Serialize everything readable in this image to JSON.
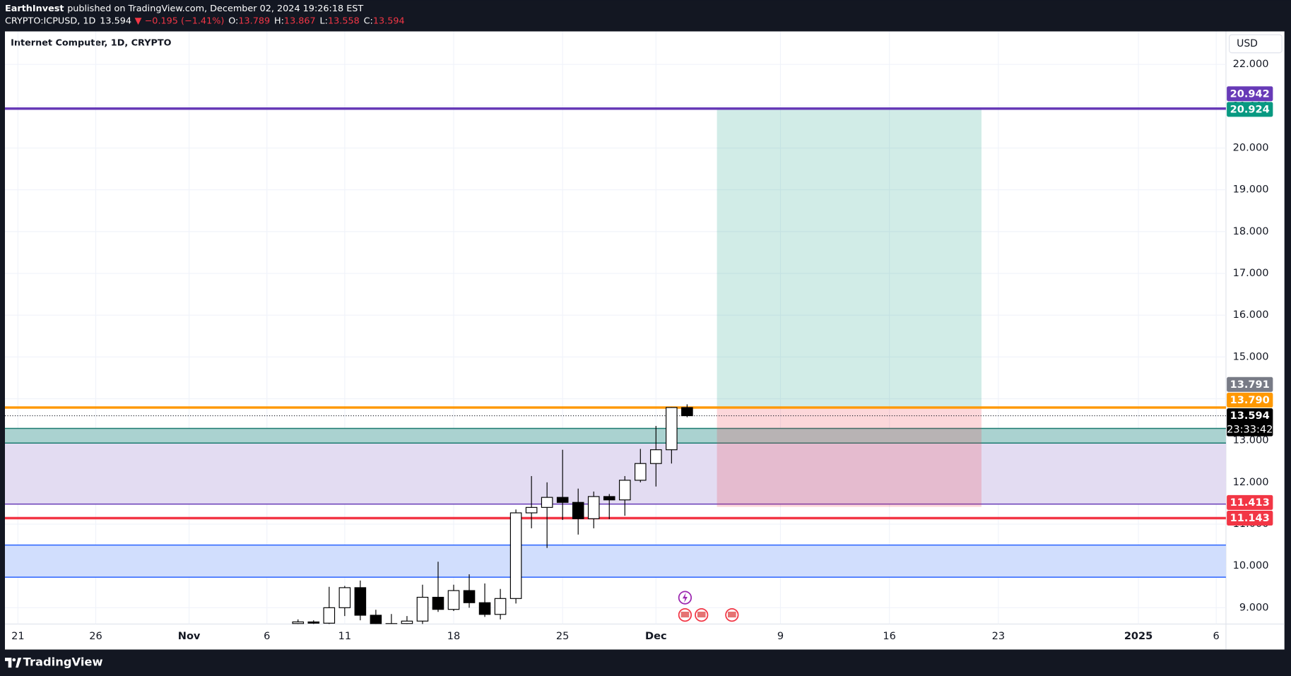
{
  "header": {
    "author": "EarthInvest",
    "published": "published on TradingView.com, December 02, 2024 19:26:18 EST",
    "symbol": "CRYPTO:ICPUSD, 1D",
    "last": "13.594",
    "change": "▼ −0.195 (−1.41%)",
    "ohlc": [
      {
        "key": "O:",
        "value": "13.789"
      },
      {
        "key": "H:",
        "value": "13.867"
      },
      {
        "key": "L:",
        "value": "13.558"
      },
      {
        "key": "C:",
        "value": "13.594"
      }
    ],
    "down_color": "#f23645"
  },
  "footer": {
    "brand": "TradingView"
  },
  "chart_data": {
    "type": "candlestick",
    "title": "Internet Computer, 1D, CRYPTO",
    "currency": "USD",
    "x": [
      "2024-11-08",
      "2024-11-09",
      "2024-11-10",
      "2024-11-11",
      "2024-11-12",
      "2024-11-13",
      "2024-11-14",
      "2024-11-15",
      "2024-11-16",
      "2024-11-17",
      "2024-11-18",
      "2024-11-19",
      "2024-11-20",
      "2024-11-21",
      "2024-11-22",
      "2024-11-23",
      "2024-11-24",
      "2024-11-25",
      "2024-11-26",
      "2024-11-27",
      "2024-11-28",
      "2024-11-29",
      "2024-11-30",
      "2024-12-01",
      "2024-12-02",
      "2024-12-03"
    ],
    "open": [
      8.62,
      8.66,
      8.63,
      9.0,
      9.48,
      8.82,
      8.6,
      8.62,
      8.68,
      9.25,
      8.96,
      9.41,
      9.12,
      8.84,
      9.22,
      11.27,
      11.4,
      11.64,
      11.52,
      11.13,
      11.66,
      11.58,
      12.05,
      12.45,
      12.78,
      13.789
    ],
    "high": [
      8.72,
      8.7,
      9.5,
      9.52,
      9.65,
      8.95,
      8.85,
      8.8,
      9.55,
      10.1,
      9.55,
      9.8,
      9.58,
      9.45,
      11.35,
      12.15,
      12.0,
      12.78,
      11.85,
      11.78,
      11.72,
      12.15,
      12.8,
      13.35,
      13.8,
      13.867
    ],
    "low": [
      8.55,
      8.55,
      8.55,
      8.8,
      8.7,
      8.5,
      8.45,
      8.5,
      8.6,
      8.9,
      8.92,
      9.0,
      8.78,
      8.72,
      9.1,
      10.9,
      10.43,
      11.1,
      10.75,
      10.9,
      11.12,
      11.2,
      12.0,
      11.9,
      12.45,
      13.558
    ],
    "close": [
      8.66,
      8.63,
      9.0,
      9.48,
      8.82,
      8.6,
      8.62,
      8.68,
      9.25,
      8.96,
      9.41,
      9.12,
      8.84,
      9.22,
      11.27,
      11.4,
      11.64,
      11.52,
      11.13,
      11.66,
      11.58,
      12.05,
      12.45,
      12.78,
      13.79,
      13.594
    ],
    "up_color": "#ffffff",
    "down_color": "#000000",
    "xlim": [
      "2024-10-20T04:00Z",
      "2025-01-06T15:00Z"
    ],
    "ylim": [
      8.61,
      22.79
    ],
    "xticks": [
      {
        "value": "2024-10-21",
        "label": "21"
      },
      {
        "value": "2024-10-26",
        "label": "26"
      },
      {
        "value": "2024-11-01",
        "label": "Nov"
      },
      {
        "value": "2024-11-06",
        "label": "6"
      },
      {
        "value": "2024-11-11",
        "label": "11"
      },
      {
        "value": "2024-11-18",
        "label": "18"
      },
      {
        "value": "2024-11-25",
        "label": "25"
      },
      {
        "value": "2024-12-01",
        "label": "Dec"
      },
      {
        "value": "2024-12-09",
        "label": "9"
      },
      {
        "value": "2024-12-16",
        "label": "16"
      },
      {
        "value": "2024-12-23",
        "label": "23"
      },
      {
        "value": "2025-01-01",
        "label": "2025"
      },
      {
        "value": "2025-01-06",
        "label": "6"
      }
    ],
    "yticks": [
      {
        "value": 9,
        "label": "9.000"
      },
      {
        "value": 10,
        "label": "10.000"
      },
      {
        "value": 11,
        "label": "11.000"
      },
      {
        "value": 12,
        "label": "12.000"
      },
      {
        "value": 13,
        "label": "13.000"
      },
      {
        "value": 14,
        "label": "14.000"
      },
      {
        "value": 15,
        "label": "15.000"
      },
      {
        "value": 16,
        "label": "16.000"
      },
      {
        "value": 17,
        "label": "17.000"
      },
      {
        "value": 18,
        "label": "18.000"
      },
      {
        "value": 19,
        "label": "19.000"
      },
      {
        "value": 20,
        "label": "20.000"
      },
      {
        "value": 21,
        "label": "21.000"
      },
      {
        "value": 22,
        "label": "22.000"
      }
    ],
    "grid": true,
    "bands": [
      {
        "from": 12.94,
        "to": 11.48,
        "fill": "#e3dcf2",
        "border": "#673ab7"
      },
      {
        "from": 13.29,
        "to": 12.94,
        "fill": "#aad2d0",
        "border": "#1b7a70"
      },
      {
        "from": 10.5,
        "to": 9.73,
        "fill": "#d1defd",
        "border": "#2962ff"
      }
    ],
    "lines": [
      {
        "value": 20.942,
        "label": "20.942",
        "color": "#673ab7"
      },
      {
        "value": 13.79,
        "label": "13.790",
        "color": "#ff9800"
      },
      {
        "value": 11.143,
        "label": "11.143",
        "color": "#f23645"
      }
    ],
    "position": {
      "start": "2024-12-04T22:00Z",
      "end": "2024-12-21T22:00Z",
      "entry": 13.791,
      "entry_label": "13.791",
      "entry_color": "#787b86",
      "target": 20.924,
      "target_label": "20.924",
      "target_color": "#089981",
      "target_fill": "rgba(8,153,129,0.19)",
      "stop": 11.413,
      "stop_label": "11.413",
      "stop_color": "#f23645",
      "stop_fill": "rgba(242,54,69,0.2)"
    },
    "last": {
      "value": 13.594,
      "label": "13.594",
      "countdown": "23:33:42"
    }
  }
}
